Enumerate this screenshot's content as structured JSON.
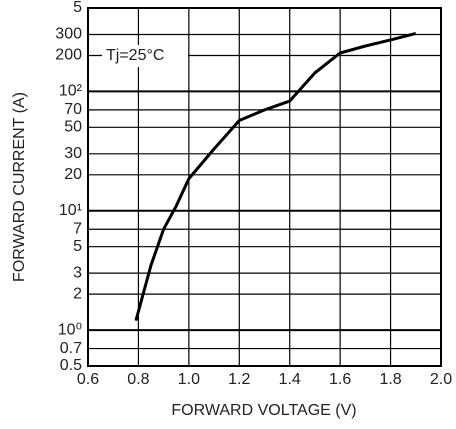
{
  "chart_data": {
    "type": "line",
    "annotation": "Tj=25°C",
    "x_label": "FORWARD VOLTAGE (V)",
    "y_label": "FORWARD CURRENT (A)",
    "log_y": true,
    "grid": true,
    "xlim": [
      0.6,
      2.0
    ],
    "xticks": [
      0.6,
      0.8,
      {
        "value": 1,
        "label": "1.0"
      },
      1.2,
      1.4,
      1.6,
      1.8,
      {
        "value": 2,
        "label": "2.0"
      }
    ],
    "ylim": [
      0.5,
      500
    ],
    "yticks": [
      0.5,
      0.7,
      {
        "value": 1,
        "label": "10⁰"
      },
      2,
      3,
      5,
      7,
      {
        "value": 10,
        "label": "10¹"
      },
      20,
      30,
      50,
      70,
      {
        "value": 100,
        "label": "10²"
      },
      200,
      300,
      {
        "value": 500,
        "label": "5"
      }
    ],
    "series": [
      {
        "color": "#000000",
        "x": [
          0.79,
          0.85,
          0.9,
          0.95,
          1.0,
          1.1,
          1.2,
          1.3,
          1.4,
          1.5,
          1.6,
          1.7,
          1.8,
          1.9
        ],
        "values": [
          1.2,
          3.5,
          7,
          11,
          18.6,
          33,
          57,
          70,
          83,
          143,
          210,
          240,
          270,
          306
        ]
      }
    ]
  }
}
